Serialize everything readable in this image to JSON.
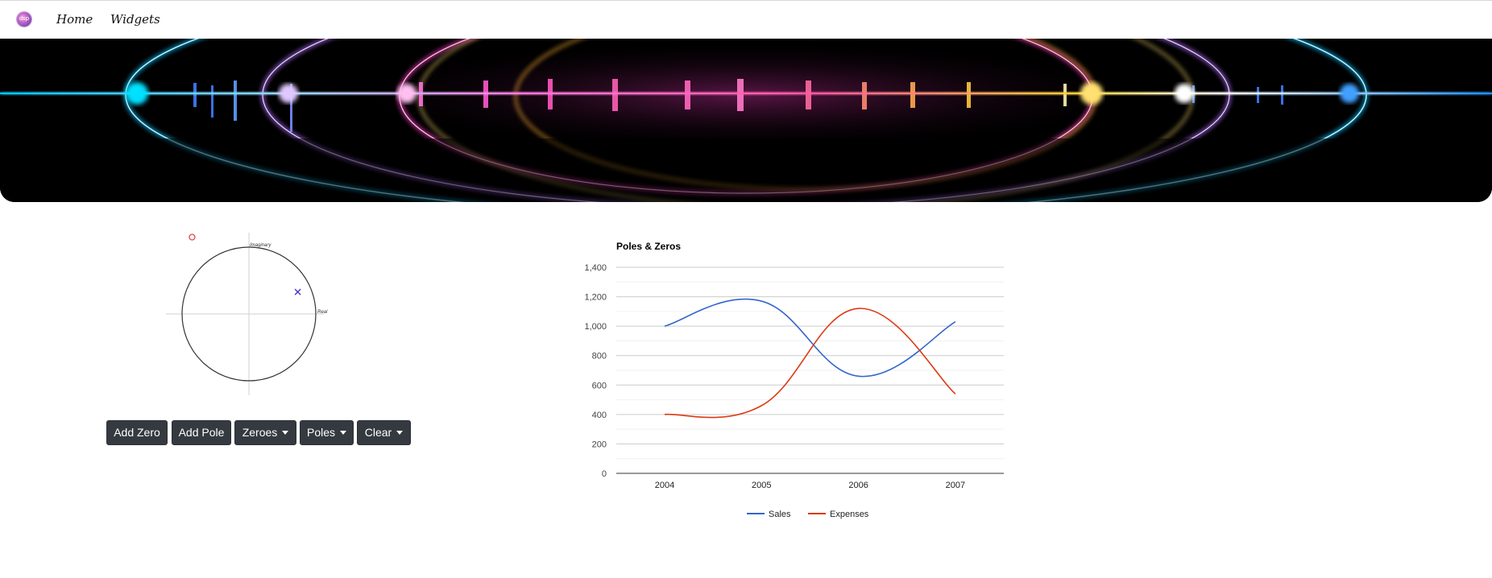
{
  "nav": {
    "logo_text": "dsp",
    "items": [
      {
        "label": "Home"
      },
      {
        "label": "Widgets"
      }
    ]
  },
  "zplane": {
    "imag_label": "Imaginary",
    "real_label": "Real",
    "zeros": [
      {
        "re": -0.85,
        "im": 1.15
      }
    ],
    "poles": [
      {
        "re": 0.73,
        "im": 0.33
      }
    ]
  },
  "buttons": {
    "add_zero": "Add Zero",
    "add_pole": "Add Pole",
    "zeroes": "Zeroes",
    "poles": "Poles",
    "clear": "Clear"
  },
  "colors": {
    "button_bg": "#343a40",
    "sales": "#3366cc",
    "expenses": "#dc3912",
    "zero_marker": "#e53935",
    "pole_marker": "#3f32c8"
  },
  "chart_data": {
    "type": "line",
    "title": "Poles & Zeros",
    "categories": [
      "2004",
      "2005",
      "2006",
      "2007"
    ],
    "series": [
      {
        "name": "Sales",
        "values": [
          1000,
          1170,
          660,
          1030
        ]
      },
      {
        "name": "Expenses",
        "values": [
          400,
          460,
          1120,
          540
        ]
      }
    ],
    "ylim": [
      0,
      1400
    ],
    "yticks": [
      "0",
      "200",
      "400",
      "600",
      "800",
      "1,000",
      "1,200",
      "1,400"
    ],
    "legend": "bottom",
    "grid": true
  }
}
